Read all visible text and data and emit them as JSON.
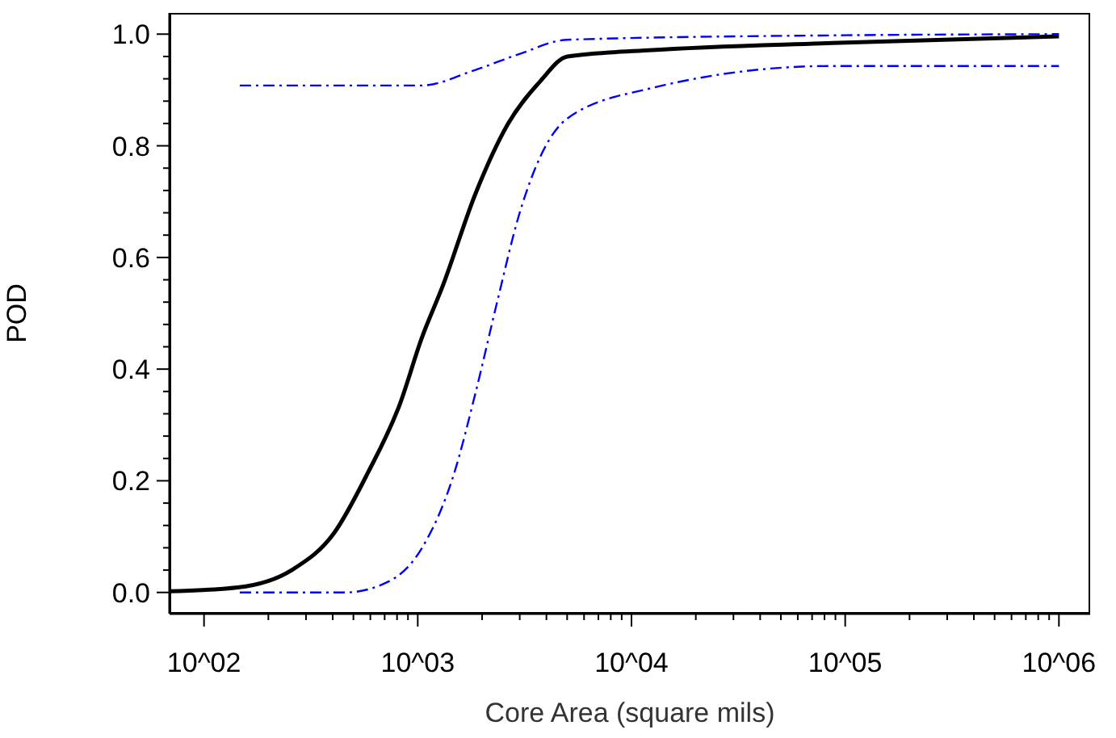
{
  "chart_data": {
    "type": "line",
    "xlabel": "Core Area (square mils)",
    "ylabel": "POD",
    "log": "x",
    "marker": "none",
    "xlim": [
      69,
      1400000
    ],
    "ylim": [
      -0.038,
      1.038
    ],
    "xticks": [
      {
        "value": 100,
        "label": "10^02"
      },
      {
        "value": 200,
        "label": null
      },
      {
        "value": 300,
        "label": null
      },
      {
        "value": 400,
        "label": null
      },
      {
        "value": 500,
        "label": null
      },
      {
        "value": 600,
        "label": null
      },
      {
        "value": 700,
        "label": null
      },
      {
        "value": 800,
        "label": null
      },
      {
        "value": 900,
        "label": null
      },
      {
        "value": 1000,
        "label": "10^03"
      },
      {
        "value": 2000,
        "label": null
      },
      {
        "value": 3000,
        "label": null
      },
      {
        "value": 4000,
        "label": null
      },
      {
        "value": 5000,
        "label": null
      },
      {
        "value": 6000,
        "label": null
      },
      {
        "value": 7000,
        "label": null
      },
      {
        "value": 8000,
        "label": null
      },
      {
        "value": 9000,
        "label": null
      },
      {
        "value": 10000,
        "label": "10^04"
      },
      {
        "value": 20000,
        "label": null
      },
      {
        "value": 30000,
        "label": null
      },
      {
        "value": 40000,
        "label": null
      },
      {
        "value": 50000,
        "label": null
      },
      {
        "value": 60000,
        "label": null
      },
      {
        "value": 70000,
        "label": null
      },
      {
        "value": 80000,
        "label": null
      },
      {
        "value": 90000,
        "label": null
      },
      {
        "value": 100000,
        "label": "10^05"
      },
      {
        "value": 200000,
        "label": null
      },
      {
        "value": 300000,
        "label": null
      },
      {
        "value": 400000,
        "label": null
      },
      {
        "value": 500000,
        "label": null
      },
      {
        "value": 600000,
        "label": null
      },
      {
        "value": 700000,
        "label": null
      },
      {
        "value": 800000,
        "label": null
      },
      {
        "value": 900000,
        "label": null
      },
      {
        "value": 1000000,
        "label": "10^06"
      }
    ],
    "yticks": [
      {
        "value": 0,
        "label": "0.0"
      },
      {
        "value": 0.04,
        "label": null
      },
      {
        "value": 0.08,
        "label": null
      },
      {
        "value": 0.12,
        "label": null
      },
      {
        "value": 0.16,
        "label": null
      },
      {
        "value": 0.2,
        "label": "0.2"
      },
      {
        "value": 0.24,
        "label": null
      },
      {
        "value": 0.28,
        "label": null
      },
      {
        "value": 0.32,
        "label": null
      },
      {
        "value": 0.36,
        "label": null
      },
      {
        "value": 0.4,
        "label": "0.4"
      },
      {
        "value": 0.44,
        "label": null
      },
      {
        "value": 0.48,
        "label": null
      },
      {
        "value": 0.52,
        "label": null
      },
      {
        "value": 0.56,
        "label": null
      },
      {
        "value": 0.6,
        "label": "0.6"
      },
      {
        "value": 0.64,
        "label": null
      },
      {
        "value": 0.68,
        "label": null
      },
      {
        "value": 0.72,
        "label": null
      },
      {
        "value": 0.76,
        "label": null
      },
      {
        "value": 0.8,
        "label": "0.8"
      },
      {
        "value": 0.84,
        "label": null
      },
      {
        "value": 0.88,
        "label": null
      },
      {
        "value": 0.92,
        "label": null
      },
      {
        "value": 0.96,
        "label": null
      },
      {
        "value": 1,
        "label": "1.0"
      }
    ],
    "series": [
      {
        "color": "#000000",
        "line_style": "solid",
        "x": [
          69,
          144,
          257,
          407,
          582,
          826,
          1040,
          1312,
          1862,
          2642,
          3750,
          5012,
          12000,
          87000,
          1000000
        ],
        "values": [
          0.002,
          0.009,
          0.04,
          0.107,
          0.213,
          0.338,
          0.454,
          0.55,
          0.714,
          0.839,
          0.916,
          0.96,
          0.971,
          0.984,
          0.996
        ]
      },
      {
        "color": "#0000ff",
        "line_style": "dashed",
        "x": [
          147,
          1040,
          1862,
          2972,
          5012,
          100000,
          1000000
        ],
        "values": [
          0.908,
          0.908,
          0.936,
          0.964,
          0.99,
          0.998,
          1.0
        ]
      },
      {
        "color": "#0000ff",
        "line_style": "dashed",
        "x": [
          147,
          457,
          734,
          1040,
          1479,
          1862,
          2355,
          2972,
          3750,
          5012,
          12000,
          87000,
          1000000
        ],
        "values": [
          0.0,
          0.0,
          0.02,
          0.078,
          0.213,
          0.357,
          0.521,
          0.675,
          0.781,
          0.849,
          0.902,
          0.943,
          0.943
        ]
      }
    ]
  }
}
